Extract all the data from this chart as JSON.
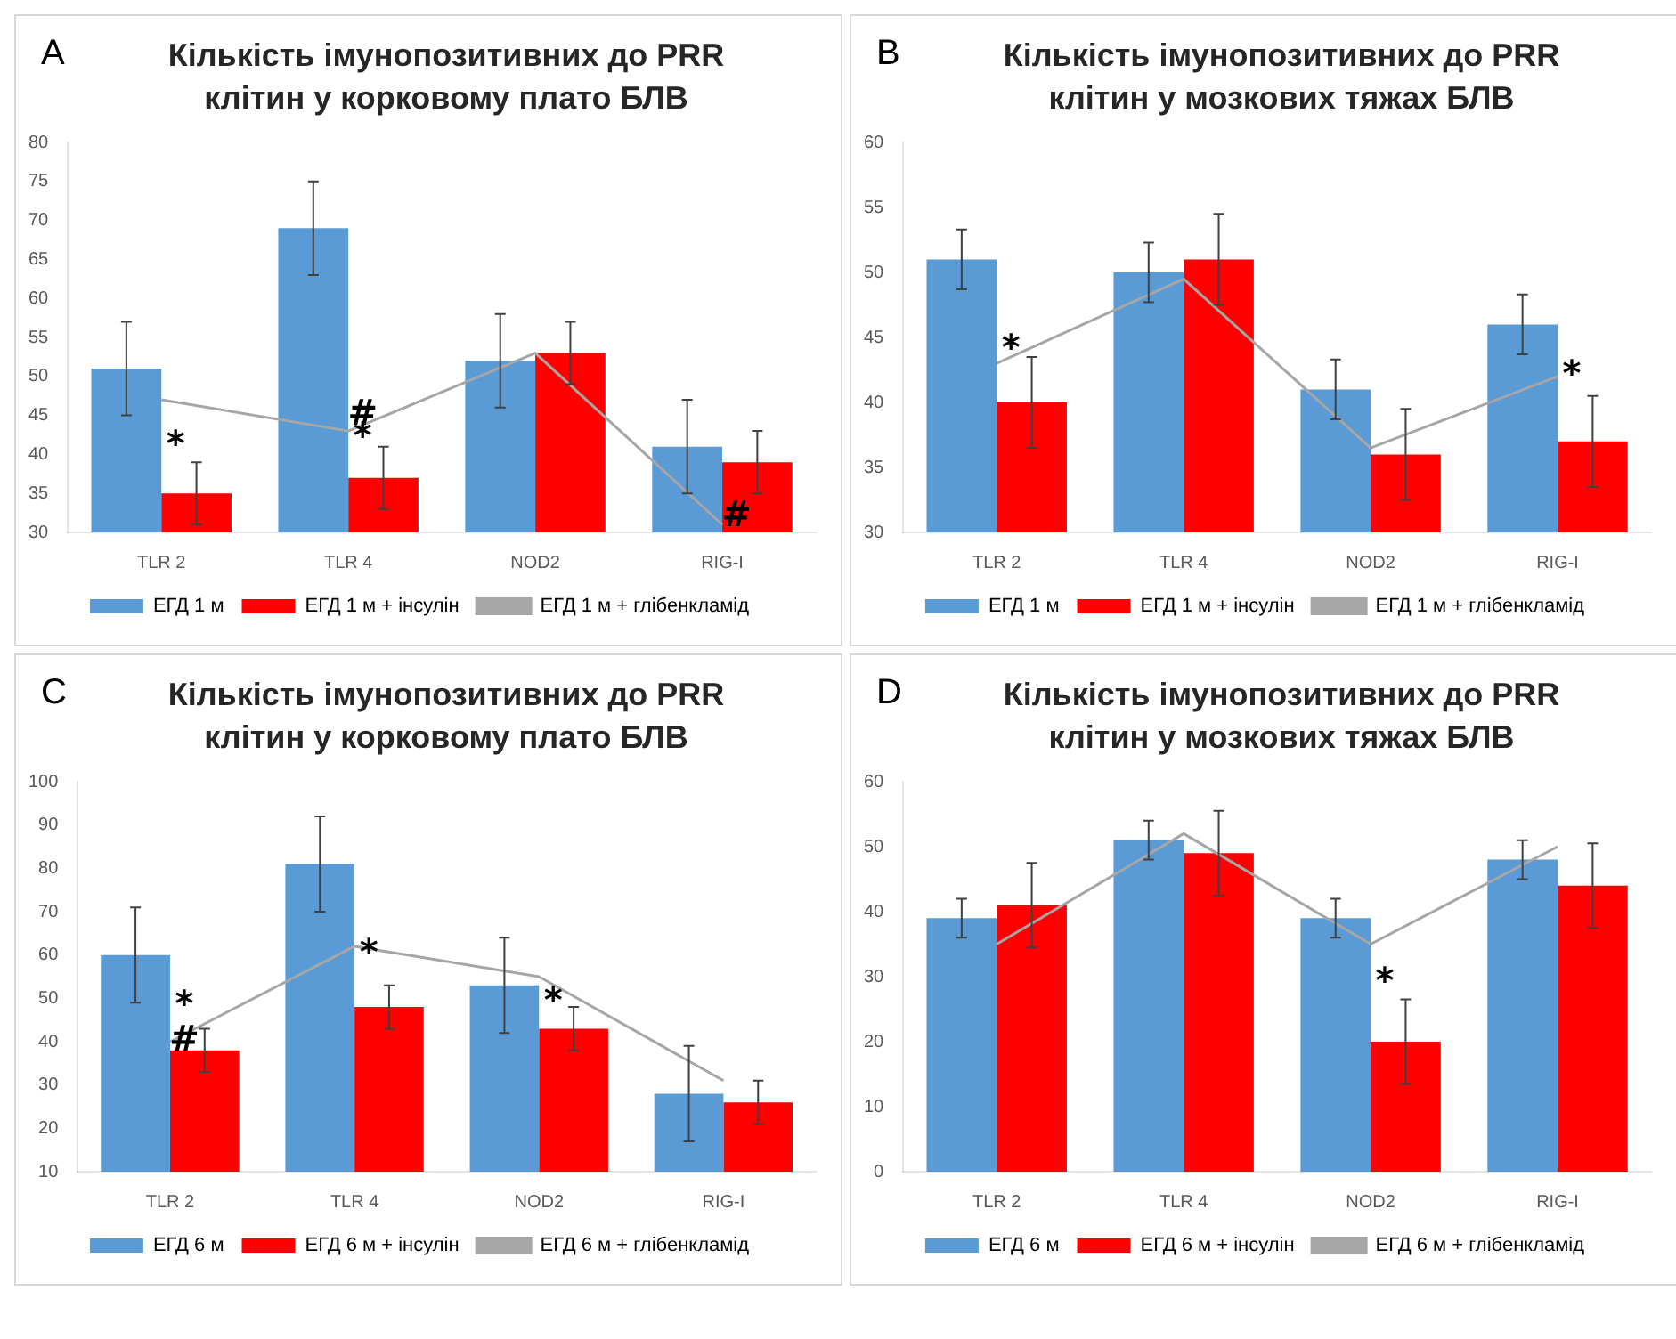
{
  "chart_data": [
    {
      "type": "bar",
      "title": "Кількість імунопозитивних до PRR клітин у корковому плато БЛВ",
      "categories": [
        "TLR 2",
        "TLR 4",
        "NOD2",
        "RIG-I"
      ],
      "ylim": [
        30,
        80
      ],
      "yticks": [
        30,
        35,
        40,
        45,
        50,
        55,
        60,
        65,
        70,
        75,
        80
      ],
      "grid": false,
      "legend": "bottom",
      "series": [
        {
          "name": "ЕГД 1 м",
          "color": "#5b9bd5",
          "values": [
            51,
            69,
            52,
            41
          ],
          "errors": [
            6,
            6,
            6,
            6
          ]
        },
        {
          "name": "ЕГД 1 м + інсулін",
          "color": "#ff0000",
          "values": [
            35,
            37,
            53,
            39
          ],
          "errors": [
            4,
            4,
            4,
            4
          ]
        },
        {
          "name": "ЕГД 1 м + глібенкламід",
          "type": "line",
          "color": "#a6a6a6",
          "values": [
            47,
            43,
            53,
            31
          ]
        }
      ],
      "annotations": [
        "A",
        {
          "text": "*",
          "x": "TLR 2",
          "y": 41
        },
        {
          "text": "#",
          "x": "TLR 4",
          "y": 45
        },
        {
          "text": "*",
          "x": "TLR 4",
          "y": 42
        },
        {
          "text": "#",
          "x": "RIG-I",
          "y": 32
        }
      ]
    },
    {
      "type": "bar",
      "title": "Кількість імунопозитивних до PRR клітин у мозкових тяжах БЛВ",
      "categories": [
        "TLR 2",
        "TLR 4",
        "NOD2",
        "RIG-I"
      ],
      "ylim": [
        30,
        60
      ],
      "yticks": [
        30,
        35,
        40,
        45,
        50,
        55,
        60
      ],
      "grid": false,
      "legend": "bottom",
      "series": [
        {
          "name": "ЕГД 1 м",
          "color": "#5b9bd5",
          "values": [
            51,
            50,
            41,
            46
          ],
          "errors": [
            2.3,
            2.3,
            2.3,
            2.3
          ]
        },
        {
          "name": "ЕГД 1 м + інсулін",
          "color": "#ff0000",
          "values": [
            40,
            51,
            36,
            37
          ],
          "errors": [
            3.5,
            3.5,
            3.5,
            3.5
          ]
        },
        {
          "name": "ЕГД 1 м + глібенкламід",
          "type": "line",
          "color": "#a6a6a6",
          "values": [
            43,
            49.5,
            36.5,
            42
          ]
        }
      ],
      "annotations": [
        "B",
        {
          "text": "*",
          "x": "TLR 2",
          "y": 44
        },
        {
          "text": "*",
          "x": "RIG-I",
          "y": 42
        }
      ]
    },
    {
      "type": "bar",
      "title": "Кількість імунопозитивних до PRR клітин у корковому плато БЛВ",
      "categories": [
        "TLR 2",
        "TLR 4",
        "NOD2",
        "RIG-I"
      ],
      "ylim": [
        10,
        100
      ],
      "yticks": [
        10,
        20,
        30,
        40,
        50,
        60,
        70,
        80,
        90,
        100
      ],
      "grid": false,
      "legend": "bottom",
      "series": [
        {
          "name": "ЕГД 6 м",
          "color": "#5b9bd5",
          "values": [
            60,
            81,
            53,
            28
          ],
          "errors": [
            11,
            11,
            11,
            11
          ]
        },
        {
          "name": "ЕГД 6 м + інсулін",
          "color": "#ff0000",
          "values": [
            38,
            48,
            43,
            26
          ],
          "errors": [
            5,
            5,
            5,
            5
          ]
        },
        {
          "name": "ЕГД 6 м + глібенкламід",
          "type": "line",
          "color": "#a6a6a6",
          "values": [
            40,
            62,
            55,
            31
          ]
        }
      ],
      "annotations": [
        "C",
        {
          "text": "#",
          "x": "TLR 2",
          "y": 40
        },
        {
          "text": "*",
          "x": "TLR 2",
          "y": 48
        },
        {
          "text": "*",
          "x": "TLR 4",
          "y": 60
        },
        {
          "text": "*",
          "x": "NOD2",
          "y": 49
        }
      ]
    },
    {
      "type": "bar",
      "title": "Кількість імунопозитивних до PRR клітин у мозкових тяжах БЛВ",
      "categories": [
        "TLR 2",
        "TLR 4",
        "NOD2",
        "RIG-I"
      ],
      "ylim": [
        0,
        60
      ],
      "yticks": [
        0,
        10,
        20,
        30,
        40,
        50,
        60
      ],
      "grid": false,
      "legend": "bottom",
      "series": [
        {
          "name": "ЕГД 6 м",
          "color": "#5b9bd5",
          "values": [
            39,
            51,
            39,
            48
          ],
          "errors": [
            3,
            3,
            3,
            3
          ]
        },
        {
          "name": "ЕГД 6 м + інсулін",
          "color": "#ff0000",
          "values": [
            41,
            49,
            20,
            44
          ],
          "errors": [
            6.5,
            6.5,
            6.5,
            6.5
          ]
        },
        {
          "name": "ЕГД 6 м + глібенкламід",
          "type": "line",
          "color": "#a6a6a6",
          "values": [
            35,
            52,
            35,
            50
          ]
        }
      ],
      "annotations": [
        "D",
        {
          "text": "*",
          "x": "NOD2",
          "y": 29
        }
      ]
    }
  ]
}
